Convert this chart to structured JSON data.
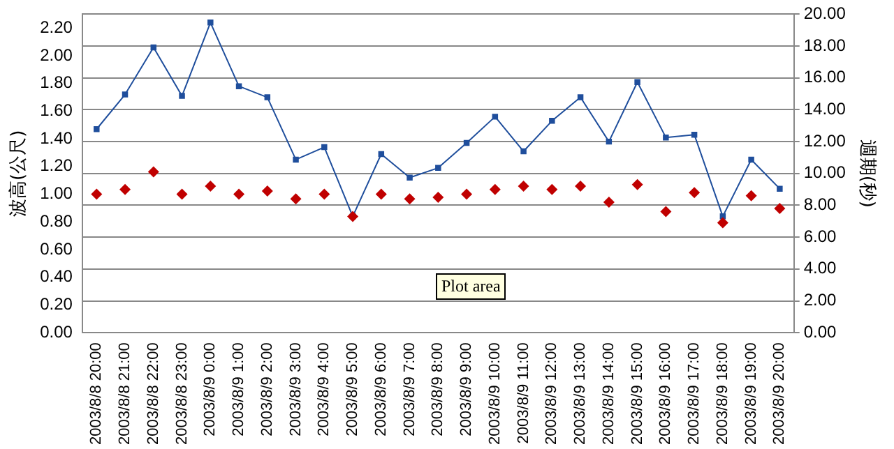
{
  "chart_data": {
    "type": "line",
    "ylabel": "波高(公尺)",
    "y2label": "週期(秒)",
    "categories": [
      "2003/8/8 20:00",
      "2003/8/8 21:00",
      "2003/8/8 22:00",
      "2003/8/8 23:00",
      "2003/8/9 0:00",
      "2003/8/9 1:00",
      "2003/8/9 2:00",
      "2003/8/9 3:00",
      "2003/8/9 4:00",
      "2003/8/9 5:00",
      "2003/8/9 6:00",
      "2003/8/9 7:00",
      "2003/8/9 8:00",
      "2003/8/9 9:00",
      "2003/8/9 10:00",
      "2003/8/9 11:00",
      "2003/8/9 12:00",
      "2003/8/9 13:00",
      "2003/8/9 14:00",
      "2003/8/9 15:00",
      "2003/8/9 16:00",
      "2003/8/9 17:00",
      "2003/8/9 18:00",
      "2003/8/9 19:00",
      "2003/8/9 20:00"
    ],
    "series": [
      {
        "color": "#1f4e9c",
        "marker": "square",
        "line_style": "solid",
        "values": [
          1.47,
          1.72,
          2.06,
          1.71,
          2.24,
          1.78,
          1.7,
          1.25,
          1.34,
          0.84,
          1.29,
          1.12,
          1.19,
          1.37,
          1.56,
          1.31,
          1.53,
          1.7,
          1.38,
          1.81,
          1.41,
          1.43,
          0.84,
          1.25,
          1.04
        ]
      },
      {
        "type": "scatter",
        "axis": "y2",
        "color": "#c00000",
        "marker": "diamond",
        "values": [
          8.7,
          9.0,
          10.1,
          8.7,
          9.2,
          8.7,
          8.9,
          8.4,
          8.7,
          7.3,
          8.7,
          8.4,
          8.5,
          8.7,
          9.0,
          9.2,
          9.0,
          9.2,
          8.2,
          9.3,
          7.6,
          8.8,
          6.9,
          8.6,
          7.8
        ]
      }
    ],
    "ylim": [
      0,
      2.3
    ],
    "yticks": [
      {
        "value": 0,
        "label": "0.00"
      },
      {
        "value": 0.2,
        "label": "0.20"
      },
      {
        "value": 0.4,
        "label": "0.40"
      },
      {
        "value": 0.6,
        "label": "0.60"
      },
      {
        "value": 0.8,
        "label": "0.80"
      },
      {
        "value": 1,
        "label": "1.00"
      },
      {
        "value": 1.2,
        "label": "1.20"
      },
      {
        "value": 1.4,
        "label": "1.40"
      },
      {
        "value": 1.6,
        "label": "1.60"
      },
      {
        "value": 1.8,
        "label": "1.80"
      },
      {
        "value": 2,
        "label": "2.00"
      },
      {
        "value": 2.2,
        "label": "2.20"
      }
    ],
    "y2lim": [
      0,
      20
    ],
    "y2ticks": [
      {
        "value": 0,
        "label": "0.00"
      },
      {
        "value": 2,
        "label": "2.00"
      },
      {
        "value": 4,
        "label": "4.00"
      },
      {
        "value": 6,
        "label": "6.00"
      },
      {
        "value": 8,
        "label": "8.00"
      },
      {
        "value": 10,
        "label": "10.00"
      },
      {
        "value": 12,
        "label": "12.00"
      },
      {
        "value": 14,
        "label": "14.00"
      },
      {
        "value": 16,
        "label": "16.00"
      },
      {
        "value": 18,
        "label": "18.00"
      },
      {
        "value": 20,
        "label": "20.00"
      }
    ],
    "grid": true,
    "legend": false,
    "annotations": [
      "Plot area"
    ]
  }
}
